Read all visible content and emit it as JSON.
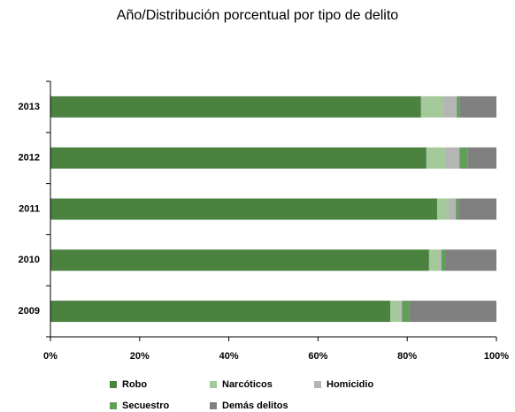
{
  "chart_data": {
    "type": "stacked-bar-horizontal",
    "title": "Año/Distribución porcentual por tipo de delito",
    "categories": [
      "2013",
      "2012",
      "2011",
      "2010",
      "2009"
    ],
    "series": [
      {
        "name": "Robo",
        "color": "#4b8240",
        "values": [
          83.1,
          84.3,
          86.7,
          84.9,
          76.2
        ]
      },
      {
        "name": "Narcóticos",
        "color": "#a4c99b",
        "values": [
          5.0,
          4.2,
          2.6,
          2.4,
          2.2
        ]
      },
      {
        "name": "Homicidio",
        "color": "#b5b5b5",
        "values": [
          3.0,
          3.2,
          1.6,
          0.4,
          0.4
        ]
      },
      {
        "name": "Secuestro",
        "color": "#5f9f58",
        "values": [
          0.6,
          1.8,
          0.6,
          0.8,
          1.6
        ]
      },
      {
        "name": "Demás delitos",
        "color": "#808080",
        "values": [
          8.3,
          6.5,
          8.5,
          11.5,
          19.6
        ]
      }
    ],
    "xlim": [
      0,
      100
    ],
    "xticks": [
      {
        "value": 0,
        "label": "0%"
      },
      {
        "value": 20,
        "label": "20%"
      },
      {
        "value": 40,
        "label": "40%"
      },
      {
        "value": 60,
        "label": "60%"
      },
      {
        "value": 80,
        "label": "80%"
      },
      {
        "value": 100,
        "label": "100%"
      }
    ],
    "legend": "bottom"
  }
}
